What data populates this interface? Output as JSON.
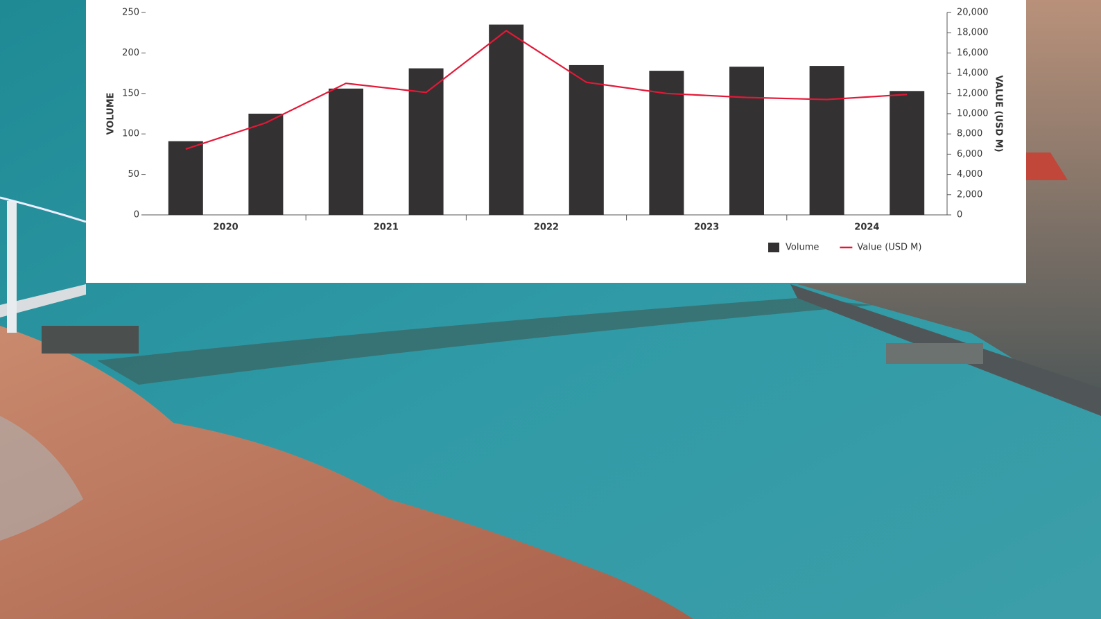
{
  "chart_data": {
    "type": "bar_line",
    "categories": [
      null,
      null,
      null,
      null,
      null,
      null,
      null,
      null,
      null,
      null
    ],
    "group_labels": [
      "2020",
      "2021",
      "2022",
      "2023",
      "2024"
    ],
    "series": [
      {
        "name": "Volume",
        "color": "#333131",
        "type": "bar",
        "axis": "y",
        "values": [
          91,
          125,
          156,
          181,
          235,
          185,
          178,
          183,
          184,
          153
        ]
      },
      {
        "name": "Value (USD M)",
        "color": "#e31837",
        "type": "line",
        "axis": "y2",
        "values": [
          6500,
          9100,
          13000,
          12100,
          18200,
          13100,
          12000,
          11600,
          11400,
          11900
        ]
      }
    ],
    "ylabel": "VOLUME",
    "y2label": "VALUE (USD M)",
    "ylim": [
      0,
      250
    ],
    "yticks": [
      0,
      50,
      100,
      150,
      200,
      250
    ],
    "y2lim": [
      0,
      20000
    ],
    "y2ticks": [
      0,
      {
        "value": 2000,
        "label": "2,000"
      },
      {
        "value": 4000,
        "label": "4,000"
      },
      {
        "value": 6000,
        "label": "6,000"
      },
      {
        "value": 8000,
        "label": "8,000"
      },
      {
        "value": 10000,
        "label": "10,000"
      },
      {
        "value": 12000,
        "label": "12,000"
      },
      {
        "value": 14000,
        "label": "14,000"
      },
      {
        "value": 16000,
        "label": "16,000"
      },
      {
        "value": 18000,
        "label": "18,000"
      },
      {
        "value": 20000,
        "label": "20,000"
      }
    ],
    "grid": false,
    "legend": "bottom-right"
  }
}
